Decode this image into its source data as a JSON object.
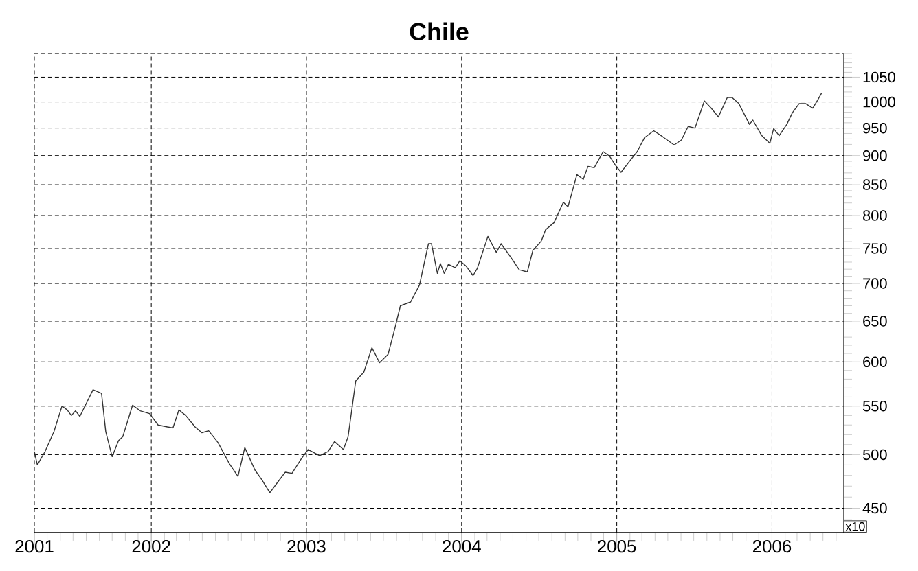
{
  "chart_data": {
    "type": "line",
    "title": "Chile",
    "x": [
      "2001-04-01",
      "2001-04-08",
      "2001-04-26",
      "2001-05-17",
      "2001-06-05",
      "2001-06-17",
      "2001-06-27",
      "2001-07-07",
      "2001-07-17",
      "2001-07-29",
      "2001-08-17",
      "2001-09-06",
      "2001-09-16",
      "2001-10-01",
      "2001-10-16",
      "2001-10-26",
      "2001-11-18",
      "2001-12-06",
      "2001-12-28",
      "2002-01-17",
      "2002-02-08",
      "2002-02-21",
      "2002-03-07",
      "2002-03-23",
      "2002-04-14",
      "2002-04-30",
      "2002-05-16",
      "2002-06-07",
      "2002-07-04",
      "2002-07-24",
      "2002-08-09",
      "2002-09-02",
      "2002-09-18",
      "2002-10-07",
      "2002-10-26",
      "2002-11-12",
      "2002-11-28",
      "2002-12-20",
      "2003-01-05",
      "2003-02-01",
      "2003-02-21",
      "2003-03-08",
      "2003-03-29",
      "2003-04-09",
      "2003-04-27",
      "2003-05-16",
      "2003-06-04",
      "2003-06-22",
      "2003-07-12",
      "2003-07-28",
      "2003-08-10",
      "2003-09-03",
      "2003-09-24",
      "2003-10-15",
      "2003-10-22",
      "2003-11-05",
      "2003-11-12",
      "2003-11-21",
      "2003-12-01",
      "2003-12-17",
      "2003-12-28",
      "2004-01-12",
      "2004-01-28",
      "2004-02-07",
      "2004-03-03",
      "2004-03-23",
      "2004-04-03",
      "2004-04-26",
      "2004-05-16",
      "2004-06-04",
      "2004-06-17",
      "2004-07-07",
      "2004-07-17",
      "2004-08-06",
      "2004-08-28",
      "2004-09-08",
      "2004-09-29",
      "2004-10-14",
      "2004-10-25",
      "2004-11-09",
      "2004-11-30",
      "2004-12-15",
      "2004-12-29",
      "2005-01-11",
      "2005-02-02",
      "2005-02-18",
      "2005-03-07",
      "2005-03-29",
      "2005-04-19",
      "2005-05-16",
      "2005-06-02",
      "2005-06-18",
      "2005-07-04",
      "2005-07-26",
      "2005-08-11",
      "2005-08-28",
      "2005-09-18",
      "2005-09-29",
      "2005-10-15",
      "2005-11-09",
      "2005-11-17",
      "2005-12-08",
      "2005-12-27",
      "2006-01-05",
      "2006-01-18",
      "2006-02-05",
      "2006-02-18",
      "2006-03-06",
      "2006-03-21",
      "2006-04-07",
      "2006-04-18",
      "2006-04-28"
    ],
    "series": [
      {
        "color": "#333333",
        "values": [
          503,
          490,
          503,
          523,
          550,
          546,
          540,
          545,
          539,
          550,
          568,
          564,
          523,
          498,
          514,
          518,
          551,
          545,
          542,
          530,
          528,
          527,
          546,
          540,
          528,
          522,
          524,
          512,
          491,
          479,
          507,
          485,
          476,
          464,
          474,
          483,
          482,
          496,
          505,
          499,
          503,
          513,
          505,
          518,
          578,
          588,
          617,
          599,
          609,
          641,
          670,
          675,
          698,
          757,
          757,
          714,
          728,
          714,
          727,
          722,
          732,
          724,
          711,
          721,
          768,
          744,
          757,
          737,
          719,
          716,
          747,
          761,
          778,
          789,
          821,
          814,
          867,
          859,
          881,
          879,
          907,
          899,
          883,
          871,
          892,
          907,
          932,
          945,
          934,
          919,
          928,
          953,
          950,
          1002,
          988,
          971,
          1009,
          1009,
          997,
          957,
          965,
          936,
          922,
          949,
          936,
          957,
          979,
          997,
          997,
          988,
          1003,
          1018
        ]
      }
    ],
    "xlim": [
      "2001-04-01",
      "2006-06-19"
    ],
    "xticks": [
      {
        "value": "2001-04-01",
        "label": "2001"
      },
      {
        "value": "2002-01-01",
        "label": "2002"
      },
      {
        "value": "2003-01-01",
        "label": "2003"
      },
      {
        "value": "2004-01-01",
        "label": "2004"
      },
      {
        "value": "2005-01-01",
        "label": "2005"
      },
      {
        "value": "2006-01-01",
        "label": "2006"
      }
    ],
    "ylim": [
      429,
      1100
    ],
    "yticks": [
      450,
      500,
      550,
      600,
      650,
      700,
      750,
      800,
      850,
      900,
      950,
      1000,
      1050
    ],
    "log": "y",
    "grid": true,
    "line_style": "solid",
    "marker": "none",
    "annotations": [
      "x10"
    ]
  }
}
